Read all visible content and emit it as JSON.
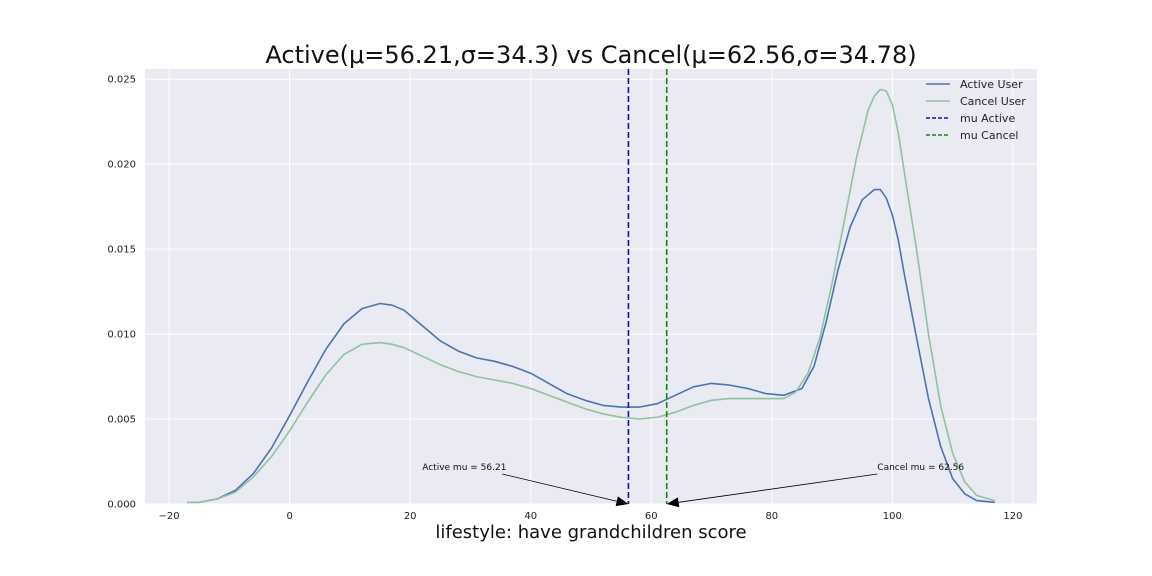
{
  "chart_data": {
    "type": "line",
    "title": "Active(μ=56.21,σ=34.3) vs Cancel(μ=62.56,σ=34.78)",
    "xlabel": "lifestyle: have grandchildren score",
    "ylabel": "",
    "xlim": [
      -24,
      124
    ],
    "ylim": [
      0,
      0.0256
    ],
    "xticks": [
      -20,
      0,
      20,
      40,
      60,
      80,
      100,
      120
    ],
    "xtick_labels": [
      "−20",
      "0",
      "20",
      "40",
      "60",
      "80",
      "100",
      "120"
    ],
    "yticks": [
      0,
      0.005,
      0.01,
      0.015,
      0.02,
      0.025
    ],
    "ytick_labels": [
      "0.000",
      "0.005",
      "0.010",
      "0.015",
      "0.020",
      "0.025"
    ],
    "grid": true,
    "legend_position": "top-right",
    "series": [
      {
        "name": "Active User",
        "color": "#4c72b0",
        "x": [
          -17,
          -15,
          -12,
          -9,
          -6,
          -3,
          0,
          3,
          6,
          9,
          12,
          15,
          17,
          19,
          22,
          25,
          28,
          31,
          34,
          37,
          40,
          43,
          46,
          49,
          52,
          55,
          58,
          61,
          64,
          67,
          70,
          73,
          76,
          79,
          82,
          85,
          87,
          89,
          91,
          93,
          95,
          97,
          98,
          99,
          100,
          101,
          102,
          104,
          106,
          108,
          110,
          112,
          114,
          117
        ],
        "y": [
          0.0001,
          0.0001,
          0.0003,
          0.0008,
          0.0018,
          0.0033,
          0.0052,
          0.0072,
          0.0091,
          0.0106,
          0.0115,
          0.0118,
          0.0117,
          0.0114,
          0.0105,
          0.0096,
          0.009,
          0.0086,
          0.0084,
          0.0081,
          0.0077,
          0.0071,
          0.0065,
          0.0061,
          0.0058,
          0.0057,
          0.0057,
          0.0059,
          0.0064,
          0.0069,
          0.0071,
          0.007,
          0.0068,
          0.0065,
          0.0064,
          0.0068,
          0.0081,
          0.0107,
          0.0138,
          0.0163,
          0.0179,
          0.0185,
          0.0185,
          0.018,
          0.017,
          0.0155,
          0.0135,
          0.0098,
          0.0062,
          0.0034,
          0.0015,
          0.0006,
          0.0002,
          0.0001
        ]
      },
      {
        "name": "Cancel User",
        "color": "#8fc1a2",
        "x": [
          -17,
          -15,
          -12,
          -9,
          -6,
          -3,
          0,
          3,
          6,
          9,
          12,
          15,
          17,
          19,
          22,
          25,
          28,
          31,
          34,
          37,
          40,
          43,
          46,
          49,
          52,
          55,
          58,
          61,
          64,
          67,
          70,
          73,
          76,
          79,
          82,
          84,
          86,
          88,
          90,
          92,
          94,
          96,
          97,
          98,
          99,
          100,
          101,
          102,
          104,
          106,
          108,
          110,
          112,
          114,
          117
        ],
        "y": [
          0.0001,
          0.0001,
          0.0003,
          0.0007,
          0.0016,
          0.0028,
          0.0043,
          0.006,
          0.0076,
          0.0088,
          0.0094,
          0.0095,
          0.0094,
          0.0092,
          0.0087,
          0.0082,
          0.0078,
          0.0075,
          0.0073,
          0.0071,
          0.0068,
          0.0064,
          0.006,
          0.0056,
          0.0053,
          0.0051,
          0.005,
          0.0051,
          0.0054,
          0.0058,
          0.0061,
          0.0062,
          0.0062,
          0.0062,
          0.0062,
          0.0066,
          0.0077,
          0.0098,
          0.013,
          0.0166,
          0.0203,
          0.0232,
          0.024,
          0.0244,
          0.0243,
          0.0235,
          0.0218,
          0.0195,
          0.015,
          0.01,
          0.0058,
          0.003,
          0.0013,
          0.0005,
          0.0002
        ]
      }
    ],
    "vlines": [
      {
        "name": "mu Active",
        "x": 56.21,
        "color": "#1010b0"
      },
      {
        "name": "mu Cancel",
        "x": 62.56,
        "color": "#118811"
      }
    ],
    "annotations": [
      {
        "text": "Active mu = 56.21",
        "text_x": 22,
        "text_y": 0.002,
        "target_x": 56.21,
        "target_y": 0
      },
      {
        "text": "Cancel mu = 62.56",
        "text_x": 97.5,
        "text_y": 0.002,
        "target_x": 62.56,
        "target_y": 0
      }
    ]
  }
}
